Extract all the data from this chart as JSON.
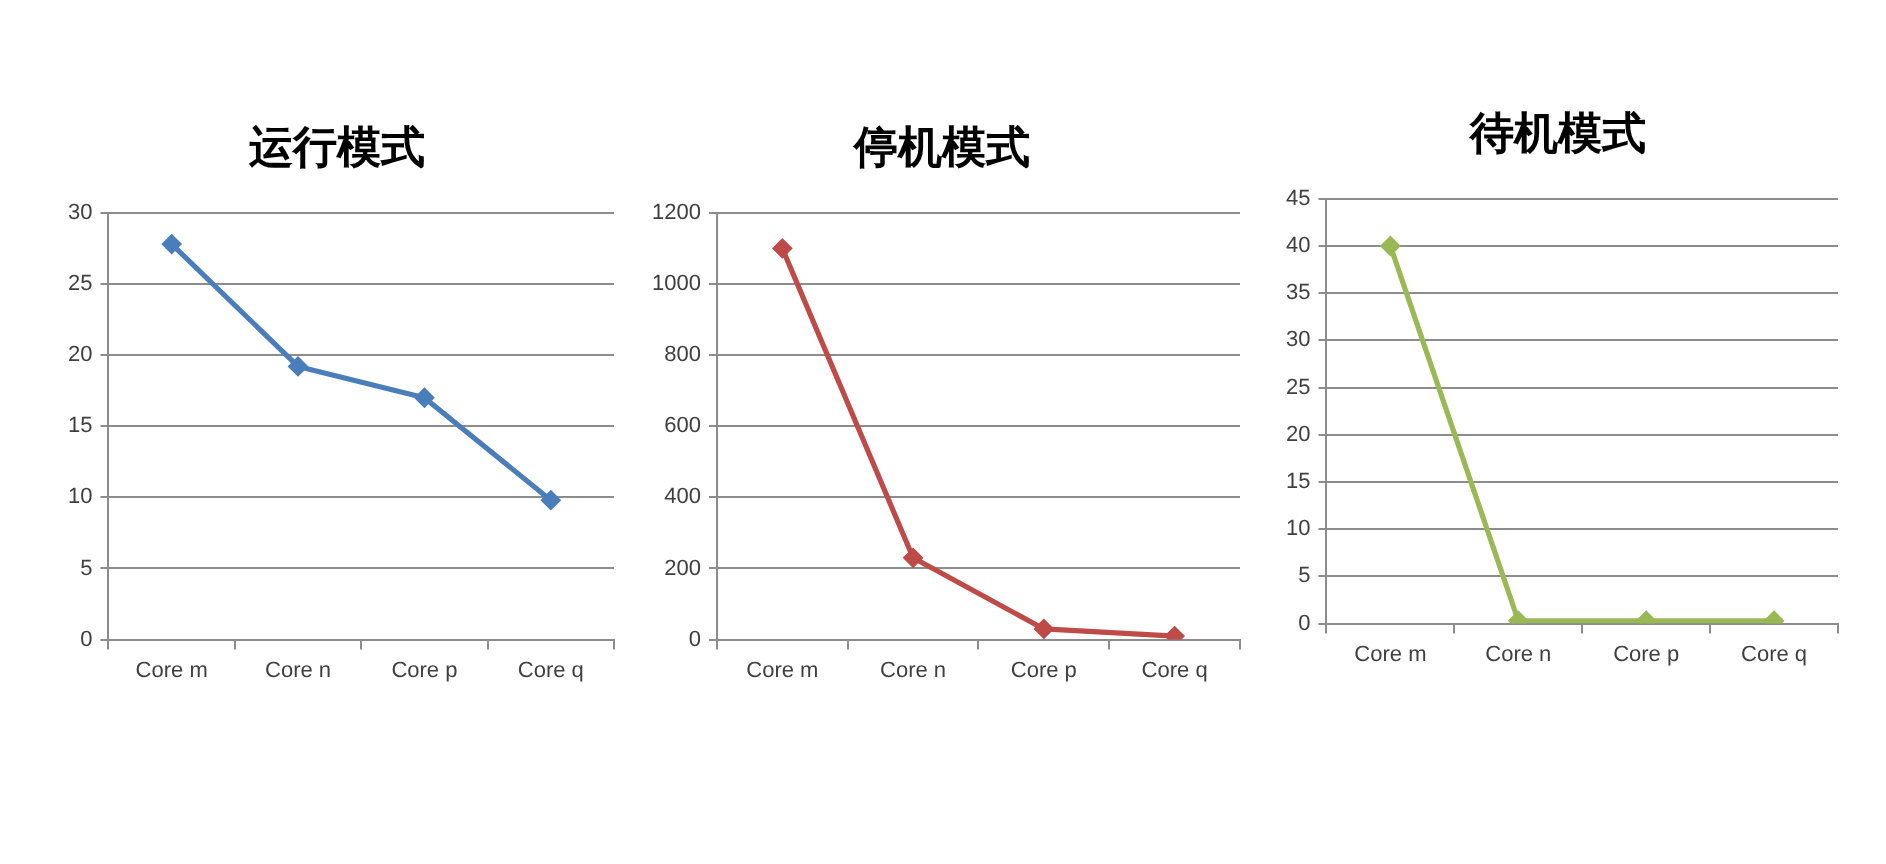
{
  "chart_data": [
    {
      "type": "line",
      "title": "运行模式",
      "categories": [
        "Core m",
        "Core n",
        "Core p",
        "Core q"
      ],
      "series": [
        {
          "color": "#4a7ebb",
          "values": [
            27.8,
            19.2,
            17,
            9.8
          ]
        }
      ],
      "ylim": [
        0,
        30
      ],
      "yticks": [
        0,
        5,
        10,
        15,
        20,
        25,
        30
      ],
      "grid": "y",
      "marker": "diamond",
      "line_style": "solid"
    },
    {
      "type": "line",
      "title": "停机模式",
      "categories": [
        "Core m",
        "Core n",
        "Core p",
        "Core q"
      ],
      "series": [
        {
          "color": "#be4b48",
          "values": [
            1100,
            230,
            30,
            10
          ]
        }
      ],
      "ylim": [
        0,
        1200
      ],
      "yticks": [
        0,
        200,
        400,
        600,
        800,
        1000,
        1200
      ],
      "grid": "y",
      "marker": "diamond",
      "line_style": "solid"
    },
    {
      "type": "line",
      "title": "待机模式",
      "categories": [
        "Core m",
        "Core n",
        "Core p",
        "Core q"
      ],
      "series": [
        {
          "color": "#98b954",
          "values": [
            40,
            0.3,
            0.3,
            0.3
          ]
        }
      ],
      "ylim": [
        0,
        45
      ],
      "yticks": [
        0,
        5,
        10,
        15,
        20,
        25,
        30,
        35,
        40,
        45
      ],
      "grid": "y",
      "marker": "diamond",
      "line_style": "solid"
    }
  ]
}
